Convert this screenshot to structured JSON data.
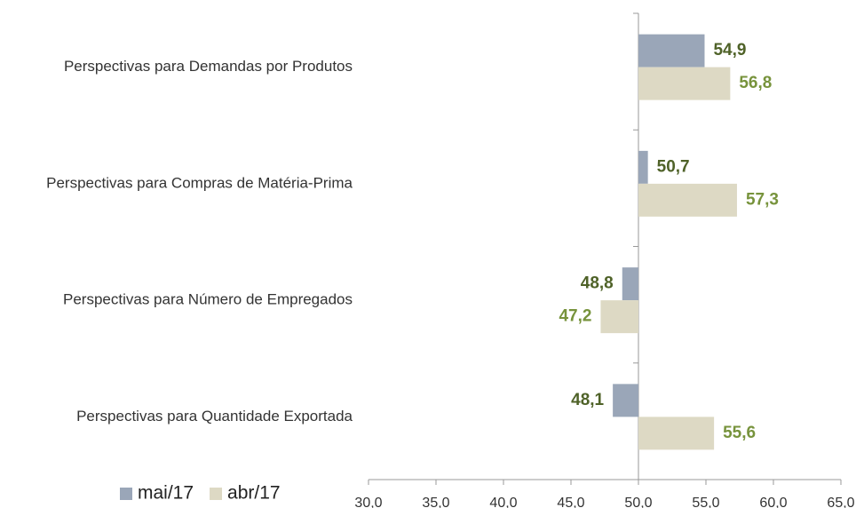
{
  "chart_data": {
    "type": "hbar",
    "categories": [
      "Perspectivas para Demandas por Produtos",
      "Perspectivas para Compras de Matéria-Prima",
      "Perspectivas para Número de Empregados",
      "Perspectivas para Quantidade Exportada"
    ],
    "series": [
      {
        "name": "mai/17",
        "color": "#9aa6b8",
        "label_color": "#4f6228",
        "values": [
          54.9,
          50.7,
          48.8,
          48.1
        ],
        "value_labels": [
          "54,9",
          "50,7",
          "48,8",
          "48,1"
        ]
      },
      {
        "name": "abr/17",
        "color": "#ddd9c4",
        "label_color": "#77933c",
        "values": [
          56.8,
          57.3,
          47.2,
          55.6
        ],
        "value_labels": [
          "56,8",
          "57,3",
          "47,2",
          "55,6"
        ]
      }
    ],
    "xlim": [
      30,
      65
    ],
    "xticks": [
      {
        "value": 30,
        "label": "30,0"
      },
      {
        "value": 35,
        "label": "35,0"
      },
      {
        "value": 40,
        "label": "40,0"
      },
      {
        "value": 45,
        "label": "45,0"
      },
      {
        "value": 50,
        "label": "50,0"
      },
      {
        "value": 55,
        "label": "55,0"
      },
      {
        "value": 60,
        "label": "60,0"
      },
      {
        "value": 65,
        "label": "65,0"
      }
    ],
    "axis_crossing": 50,
    "legend": "bottom-left"
  }
}
